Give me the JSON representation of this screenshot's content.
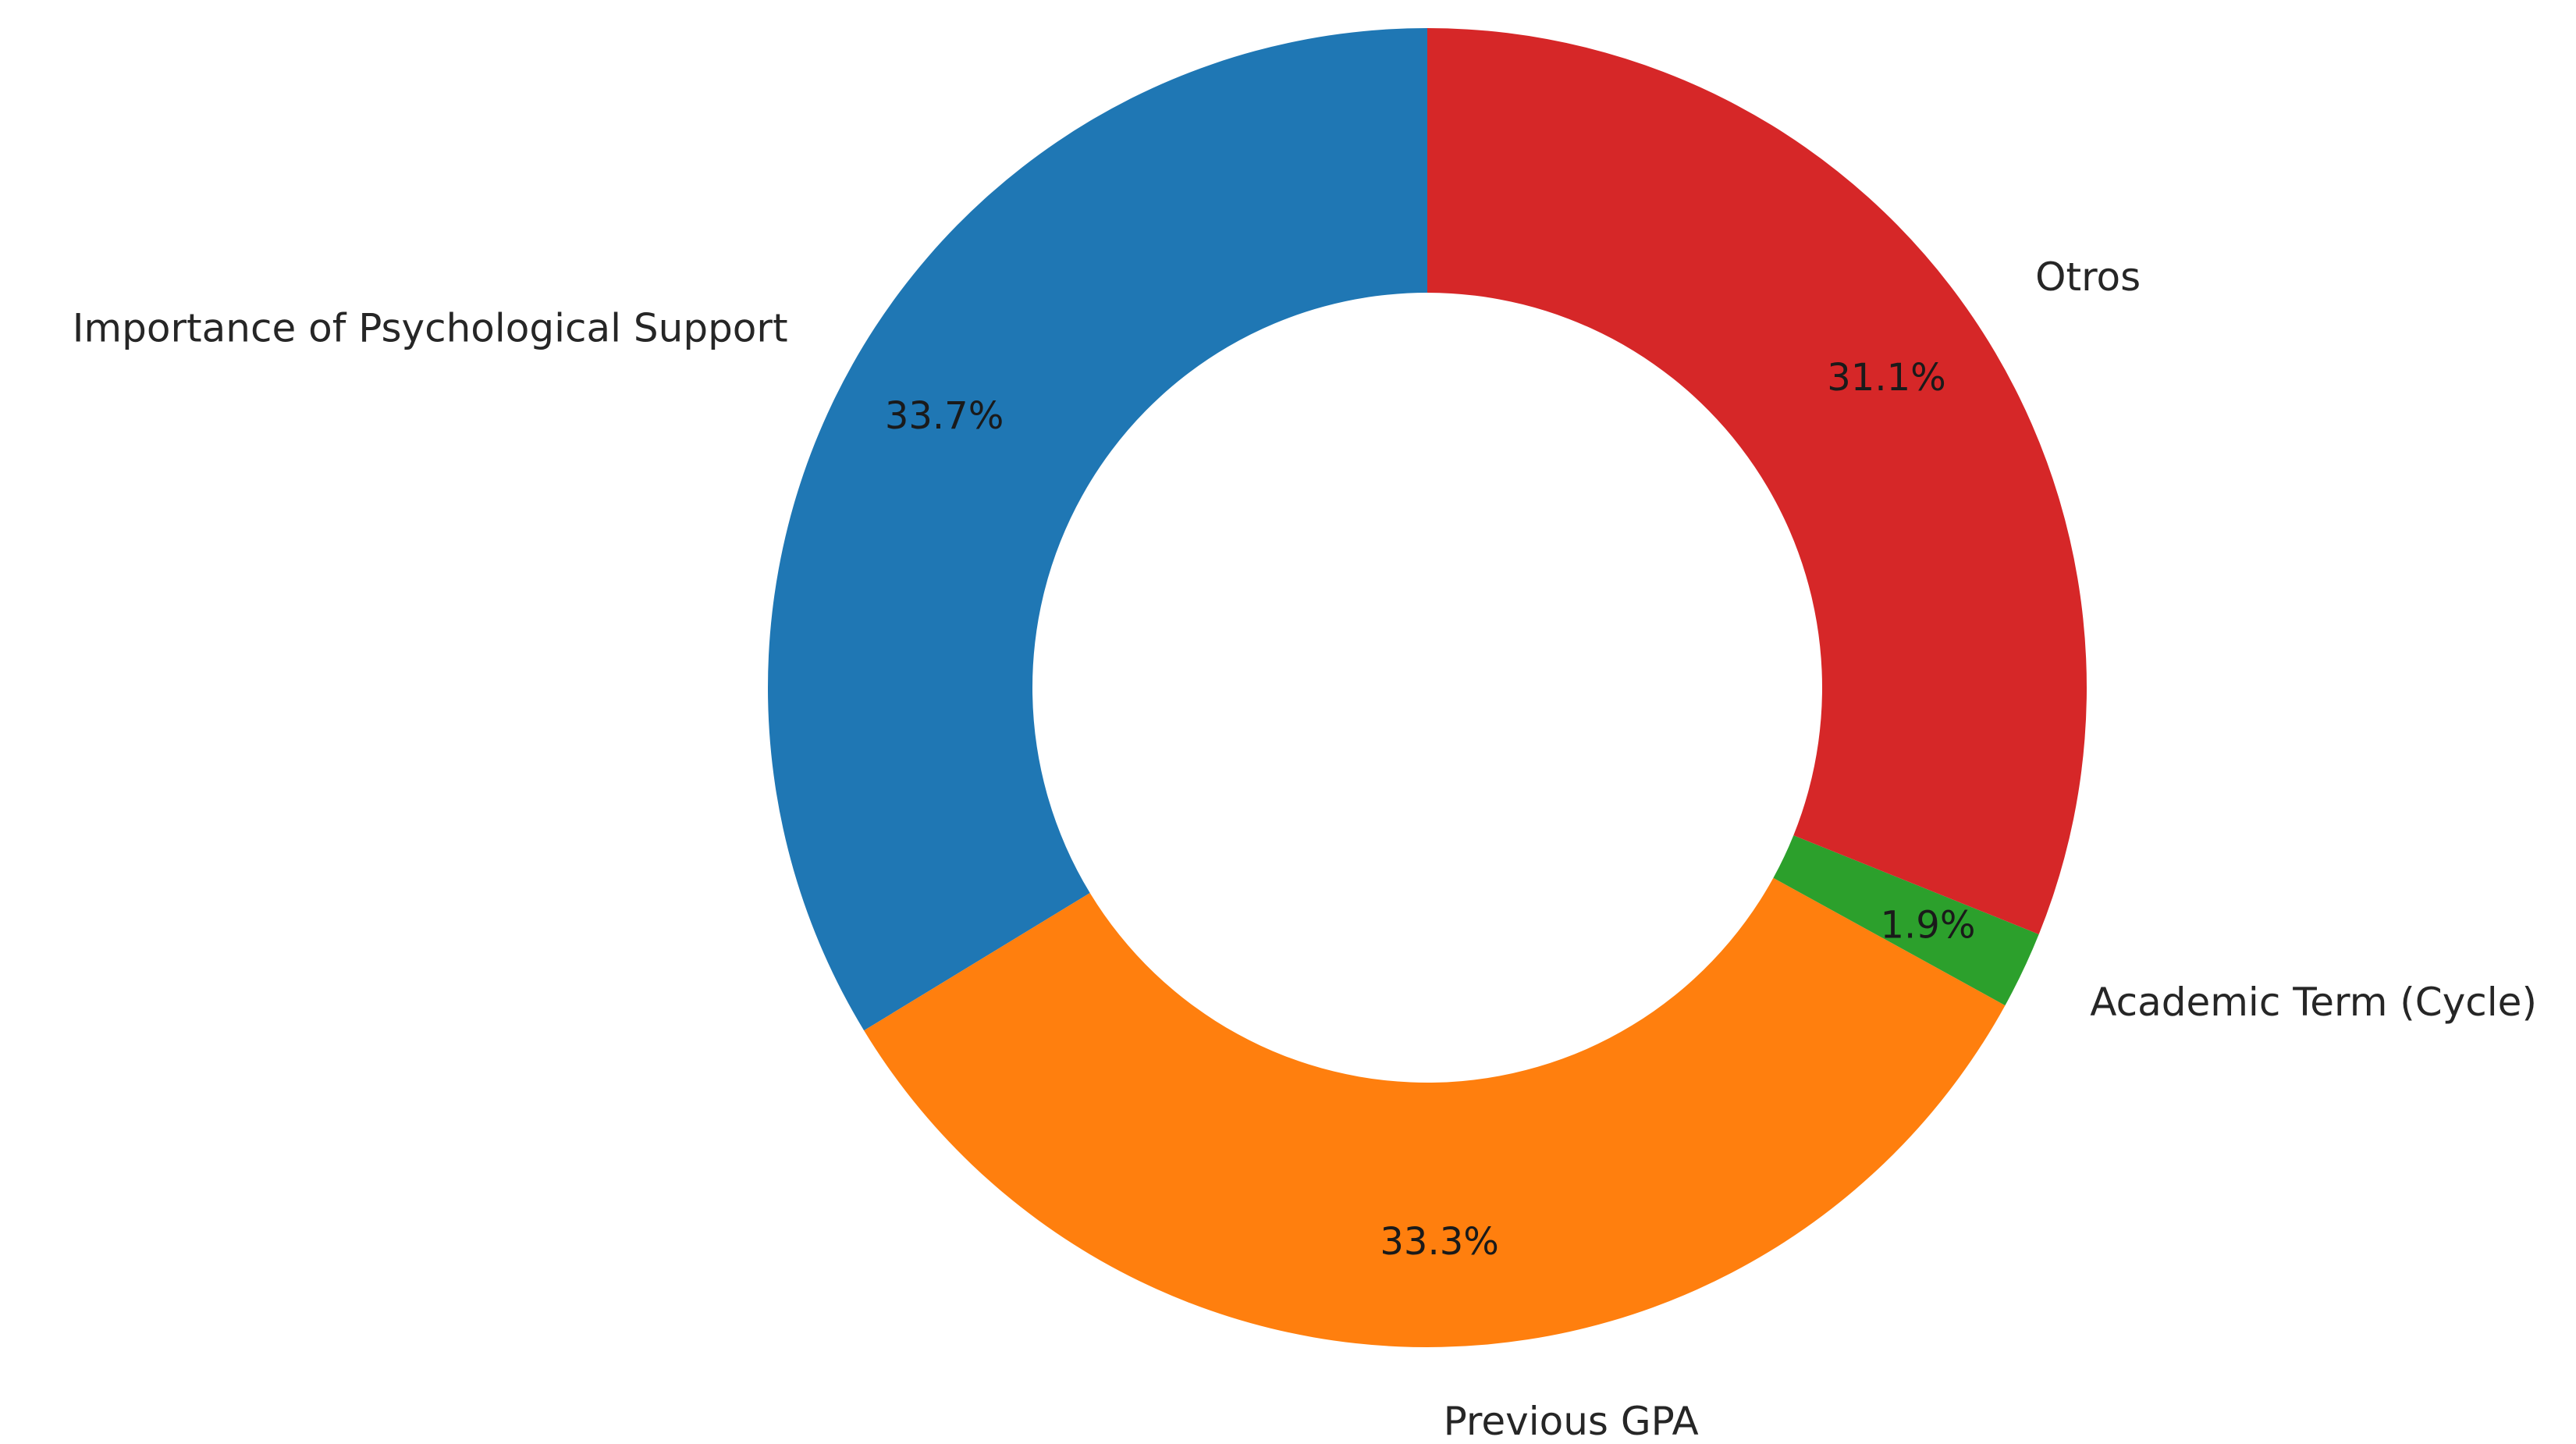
{
  "chart_data": {
    "type": "pie",
    "donut": true,
    "start_angle_deg": 90,
    "direction": "counterclockwise",
    "slices": [
      {
        "label": "Importance of Psychological Support",
        "value": 33.7,
        "pct_text": "33.7%",
        "color": "#1f77b4"
      },
      {
        "label": "Previous GPA",
        "value": 33.3,
        "pct_text": "33.3%",
        "color": "#ff7f0e"
      },
      {
        "label": "Academic Term (Cycle)",
        "value": 1.9,
        "pct_text": "1.9%",
        "color": "#2ca02c"
      },
      {
        "label": "Otros",
        "value": 31.1,
        "pct_text": "31.1%",
        "color": "#d62728"
      }
    ]
  }
}
